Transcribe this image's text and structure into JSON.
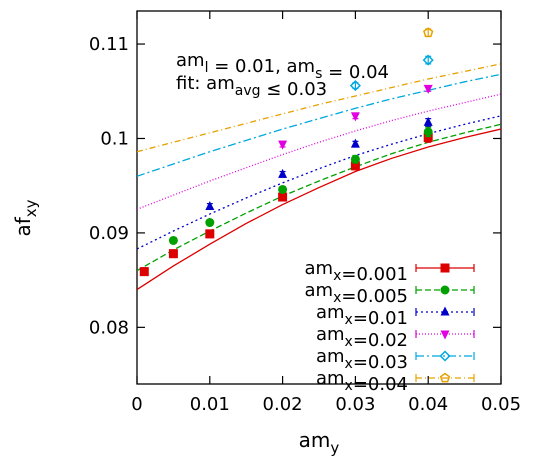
{
  "chart_data": {
    "type": "scatter",
    "xlabel": "am_y",
    "ylabel": "af_xy",
    "xlim": [
      0,
      0.05
    ],
    "ylim": [
      0.074,
      0.1135
    ],
    "x_ticks": [
      "0",
      "0.01",
      "0.02",
      "0.03",
      "0.04",
      "0.05"
    ],
    "y_ticks": [
      "0.08",
      "0.09",
      "0.1",
      "0.11"
    ],
    "annotation": {
      "line1": "am_l = 0.01, am_s = 0.04",
      "line2": "fit: am_avg ≤ 0.03"
    },
    "legend_position": "bottom-right",
    "grid": false,
    "series": [
      {
        "name": "am_x=0.001",
        "color": "#dd0000",
        "marker": "square",
        "dash": "solid",
        "points": [
          {
            "x": 0.001,
            "y": 0.0859,
            "err": 0.0004
          },
          {
            "x": 0.005,
            "y": 0.0878,
            "err": 0.0004
          },
          {
            "x": 0.01,
            "y": 0.0899,
            "err": 0.0004
          },
          {
            "x": 0.02,
            "y": 0.0938,
            "err": 0.0004
          },
          {
            "x": 0.03,
            "y": 0.0971,
            "err": 0.0004
          },
          {
            "x": 0.04,
            "y": 0.1001,
            "err": 0.0005
          }
        ],
        "fit": {
          "x": [
            0,
            0.005,
            0.01,
            0.015,
            0.02,
            0.025,
            0.03,
            0.035,
            0.04,
            0.045,
            0.05
          ],
          "y": [
            0.084,
            0.0865,
            0.0888,
            0.091,
            0.093,
            0.0948,
            0.0965,
            0.0979,
            0.0991,
            0.1001,
            0.101
          ]
        }
      },
      {
        "name": "am_x=0.005",
        "color": "#00a000",
        "marker": "circle",
        "dash": "6,3",
        "points": [
          {
            "x": 0.005,
            "y": 0.0892,
            "err": 0.0003
          },
          {
            "x": 0.01,
            "y": 0.0911,
            "err": 0.0003
          },
          {
            "x": 0.02,
            "y": 0.0946,
            "err": 0.0003
          },
          {
            "x": 0.03,
            "y": 0.0978,
            "err": 0.0004
          },
          {
            "x": 0.04,
            "y": 0.1007,
            "err": 0.0005
          }
        ],
        "fit": {
          "x": [
            0,
            0.005,
            0.01,
            0.015,
            0.02,
            0.025,
            0.03,
            0.035,
            0.04,
            0.045,
            0.05
          ],
          "y": [
            0.086,
            0.0882,
            0.0902,
            0.0921,
            0.0939,
            0.0955,
            0.097,
            0.0984,
            0.0996,
            0.1006,
            0.1015
          ]
        }
      },
      {
        "name": "am_x=0.01",
        "color": "#0000c8",
        "marker": "triangle",
        "dash": "2,3",
        "points": [
          {
            "x": 0.01,
            "y": 0.0928,
            "err": 0.0003
          },
          {
            "x": 0.02,
            "y": 0.0962,
            "err": 0.0003
          },
          {
            "x": 0.03,
            "y": 0.0994,
            "err": 0.0003
          },
          {
            "x": 0.04,
            "y": 0.1017,
            "err": 0.0004
          }
        ],
        "fit": {
          "x": [
            0,
            0.005,
            0.01,
            0.015,
            0.02,
            0.025,
            0.03,
            0.035,
            0.04,
            0.045,
            0.05
          ],
          "y": [
            0.0883,
            0.0902,
            0.092,
            0.0937,
            0.0953,
            0.0968,
            0.0982,
            0.0994,
            0.1005,
            0.1015,
            0.1024
          ]
        }
      },
      {
        "name": "am_x=0.02",
        "color": "#e000e0",
        "marker": "triangle-down",
        "dash": "1,2",
        "points": [
          {
            "x": 0.02,
            "y": 0.0994,
            "err": 0.0003
          },
          {
            "x": 0.03,
            "y": 0.1024,
            "err": 0.0003
          },
          {
            "x": 0.04,
            "y": 0.1053,
            "err": 0.0003
          }
        ],
        "fit": {
          "x": [
            0,
            0.005,
            0.01,
            0.015,
            0.02,
            0.025,
            0.03,
            0.035,
            0.04,
            0.045,
            0.05
          ],
          "y": [
            0.0925,
            0.094,
            0.0955,
            0.0969,
            0.0983,
            0.0996,
            0.1008,
            0.1019,
            0.1029,
            0.1038,
            0.1047
          ]
        }
      },
      {
        "name": "am_x=0.03",
        "color": "#00a8e0",
        "marker": "diamond",
        "dash": "8,3,2,3",
        "points": [
          {
            "x": 0.03,
            "y": 0.1056,
            "err": 0.0003
          },
          {
            "x": 0.04,
            "y": 0.1083,
            "err": 0.0004
          }
        ],
        "fit": {
          "x": [
            0,
            0.005,
            0.01,
            0.015,
            0.02,
            0.025,
            0.03,
            0.035,
            0.04,
            0.045,
            0.05
          ],
          "y": [
            0.096,
            0.0973,
            0.0986,
            0.0998,
            0.101,
            0.1021,
            0.1032,
            0.1042,
            0.1051,
            0.106,
            0.1068
          ]
        }
      },
      {
        "name": "am_x=0.04",
        "color": "#e8a000",
        "marker": "pentagon",
        "dash": "6,3,1,3",
        "points": [
          {
            "x": 0.04,
            "y": 0.1112,
            "err": 0.0004
          }
        ],
        "fit": {
          "x": [
            0,
            0.005,
            0.01,
            0.015,
            0.02,
            0.025,
            0.03,
            0.035,
            0.04,
            0.045,
            0.05
          ],
          "y": [
            0.0986,
            0.0996,
            0.1006,
            0.1016,
            0.1026,
            0.1036,
            0.1045,
            0.1054,
            0.1063,
            0.1071,
            0.1079
          ]
        }
      }
    ]
  }
}
